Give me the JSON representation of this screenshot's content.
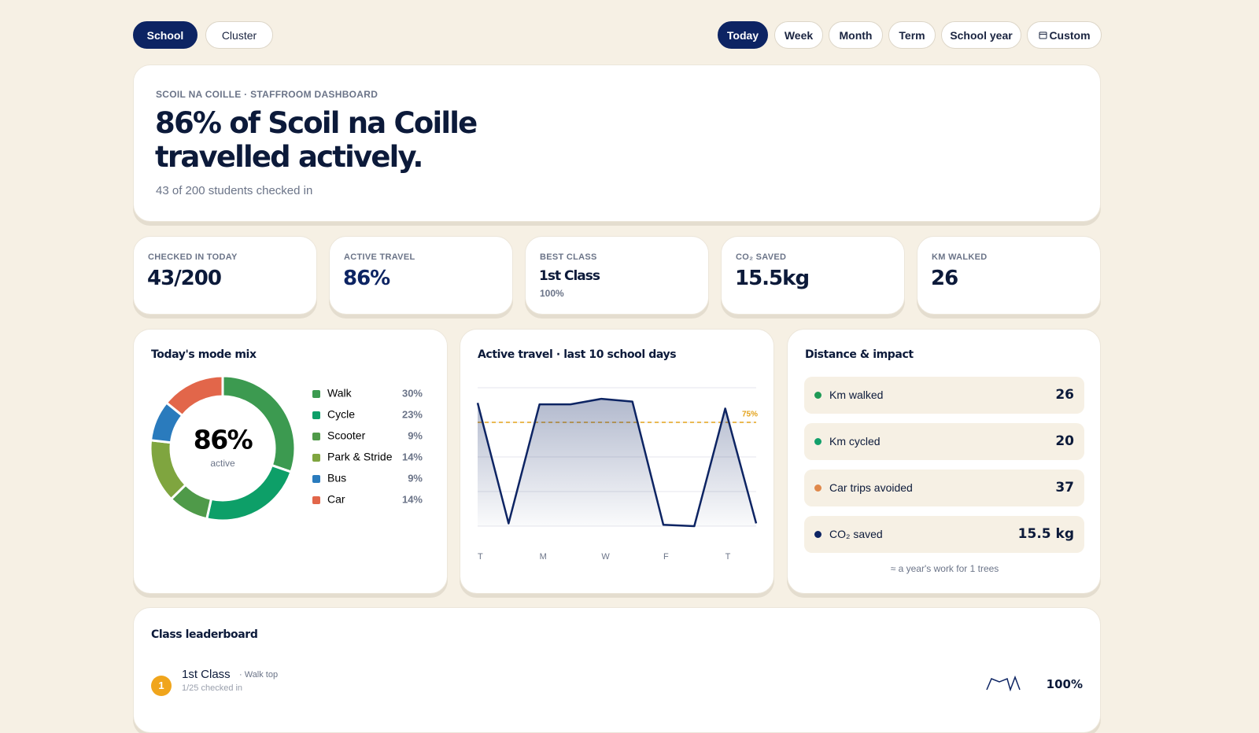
{
  "filters": {
    "scope": [
      "School",
      "Cluster"
    ],
    "period": [
      "Today",
      "Week",
      "Month",
      "Term",
      "School year",
      "Custom"
    ]
  },
  "hero": {
    "eyebrow": "SCOIL NA COILLE · STAFFROOM DASHBOARD",
    "title": "86% of Scoil na Coille travelled actively.",
    "subtitle": "43 of 200 students checked in"
  },
  "kpis": [
    {
      "label": "CHECKED IN TODAY",
      "value": "43/200"
    },
    {
      "label": "ACTIVE TRAVEL",
      "value": "86%"
    },
    {
      "label": "BEST CLASS",
      "value": "1st Class",
      "note": "100%"
    },
    {
      "label": "CO₂ SAVED",
      "value": "15.5kg"
    },
    {
      "label": "KM WALKED",
      "value": "26"
    }
  ],
  "chart_data": [
    {
      "type": "pie",
      "title": "Today's mode mix",
      "center_value": "86%",
      "center_label": "active",
      "categories": [
        "Walk",
        "Cycle",
        "Scooter",
        "Park & Stride",
        "Bus",
        "Car"
      ],
      "values": [
        30,
        23,
        9,
        14,
        9,
        14
      ],
      "value_labels": [
        "30%",
        "23%",
        "9%",
        "14%",
        "9%",
        "14%"
      ],
      "colors": [
        "#3c9a50",
        "#0d9f68",
        "#4f9a49",
        "#7fa53f",
        "#2a7bbd",
        "#e2664a"
      ]
    },
    {
      "type": "line",
      "title": "Active travel · last 10 school days",
      "categories": [
        "T",
        null,
        "M",
        null,
        "W",
        null,
        "F",
        null,
        "T",
        null
      ],
      "values": [
        89,
        2,
        88,
        88,
        92,
        90,
        1,
        0,
        85,
        2
      ],
      "color": "#0d2463",
      "target": {
        "value": 75,
        "label": "75%"
      },
      "target_color": "#e3a21a",
      "ylim": [
        0,
        100
      ],
      "yticks": [
        0,
        25,
        50,
        75,
        100
      ],
      "grid": true
    }
  ],
  "distance": {
    "title": "Distance & impact",
    "items": [
      {
        "label": "Km walked",
        "value": "26",
        "color": "#1f9a56"
      },
      {
        "label": "Km cycled",
        "value": "20",
        "color": "#12a06b"
      },
      {
        "label": "Car trips avoided",
        "value": "37",
        "color": "#e0884a"
      },
      {
        "label": "CO₂ saved",
        "value": "15.5 kg",
        "color": "#0d2463"
      }
    ],
    "note": "≈ a year's work for 1 trees"
  },
  "leaderboard": {
    "title": "Class leaderboard",
    "rows": [
      {
        "rank": "1",
        "name": "1st Class",
        "tag": "· Walk top",
        "sub": "1/25 checked in",
        "value": "100%"
      }
    ]
  }
}
